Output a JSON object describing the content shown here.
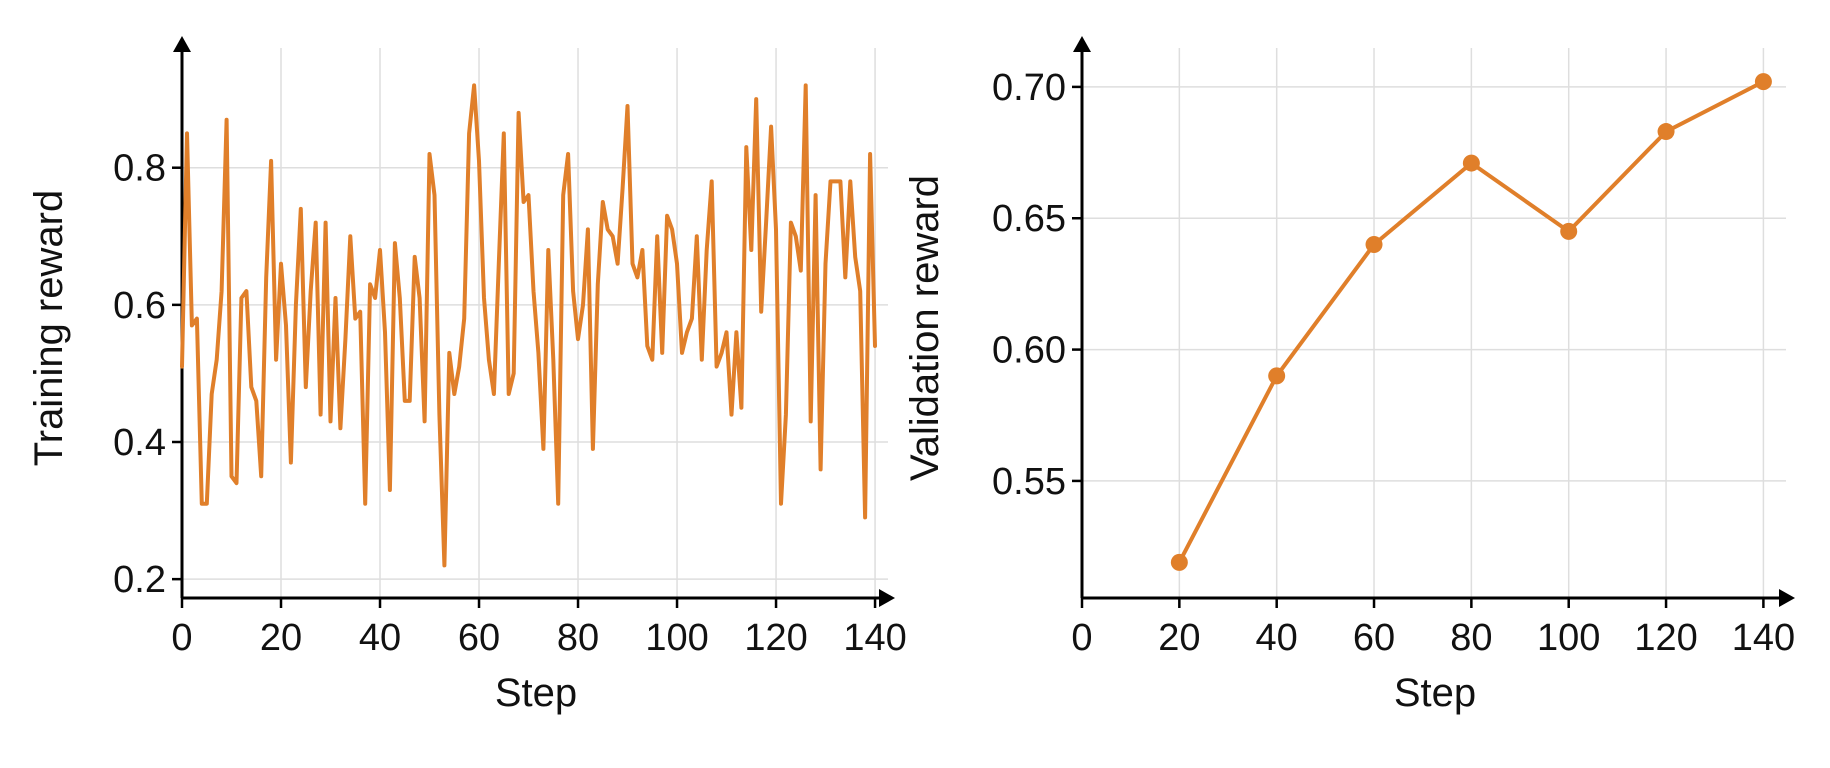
{
  "colors": {
    "series": "#E07F2A",
    "grid": "#DEDEDE",
    "axis": "#000000"
  },
  "chart_data": [
    {
      "type": "line",
      "xlabel": "Step",
      "ylabel": "Training reward",
      "xlim": [
        0,
        141
      ],
      "ylim": [
        0.19,
        0.96
      ],
      "xticks": [
        0,
        20,
        40,
        60,
        80,
        100,
        120,
        140
      ],
      "yticks": [
        0.2,
        0.4,
        0.6,
        0.8
      ],
      "ytick_labels": [
        "0.2",
        "0.4",
        "0.6",
        "0.8"
      ],
      "grid": true,
      "series": [
        {
          "x": [
            0,
            1,
            2,
            3,
            4,
            5,
            6,
            7,
            8,
            9,
            10,
            11,
            12,
            13,
            14,
            15,
            16,
            17,
            18,
            19,
            20,
            21,
            22,
            23,
            24,
            25,
            26,
            27,
            28,
            29,
            30,
            31,
            32,
            33,
            34,
            35,
            36,
            37,
            38,
            39,
            40,
            41,
            42,
            43,
            44,
            45,
            46,
            47,
            48,
            49,
            50,
            51,
            52,
            53,
            54,
            55,
            56,
            57,
            58,
            59,
            60,
            61,
            62,
            63,
            64,
            65,
            66,
            67,
            68,
            69,
            70,
            71,
            72,
            73,
            74,
            75,
            76,
            77,
            78,
            79,
            80,
            81,
            82,
            83,
            84,
            85,
            86,
            87,
            88,
            89,
            90,
            91,
            92,
            93,
            94,
            95,
            96,
            97,
            98,
            99,
            100,
            101,
            102,
            103,
            104,
            105,
            106,
            107,
            108,
            109,
            110,
            111,
            112,
            113,
            114,
            115,
            116,
            117,
            118,
            119,
            120,
            121,
            122,
            123,
            124,
            125,
            126,
            127,
            128,
            129,
            130,
            131,
            132,
            133,
            134,
            135,
            136,
            137,
            138,
            139,
            140
          ],
          "values": [
            0.51,
            0.85,
            0.57,
            0.58,
            0.31,
            0.31,
            0.47,
            0.52,
            0.62,
            0.87,
            0.35,
            0.34,
            0.61,
            0.62,
            0.48,
            0.46,
            0.35,
            0.64,
            0.81,
            0.52,
            0.66,
            0.57,
            0.37,
            0.6,
            0.74,
            0.48,
            0.62,
            0.72,
            0.44,
            0.72,
            0.43,
            0.61,
            0.42,
            0.55,
            0.7,
            0.58,
            0.59,
            0.31,
            0.63,
            0.61,
            0.68,
            0.56,
            0.33,
            0.69,
            0.61,
            0.46,
            0.46,
            0.67,
            0.61,
            0.43,
            0.82,
            0.76,
            0.44,
            0.22,
            0.53,
            0.47,
            0.51,
            0.58,
            0.85,
            0.92,
            0.81,
            0.61,
            0.52,
            0.47,
            0.66,
            0.85,
            0.47,
            0.5,
            0.88,
            0.75,
            0.76,
            0.62,
            0.53,
            0.39,
            0.68,
            0.52,
            0.31,
            0.76,
            0.82,
            0.62,
            0.55,
            0.6,
            0.71,
            0.39,
            0.63,
            0.75,
            0.71,
            0.7,
            0.66,
            0.77,
            0.89,
            0.66,
            0.64,
            0.68,
            0.54,
            0.52,
            0.7,
            0.53,
            0.73,
            0.71,
            0.66,
            0.53,
            0.56,
            0.58,
            0.7,
            0.52,
            0.68,
            0.78,
            0.51,
            0.53,
            0.56,
            0.44,
            0.56,
            0.45,
            0.83,
            0.68,
            0.9,
            0.59,
            0.72,
            0.86,
            0.71,
            0.31,
            0.44,
            0.72,
            0.7,
            0.65,
            0.92,
            0.43,
            0.76,
            0.36,
            0.66,
            0.78,
            0.78,
            0.78,
            0.64,
            0.78,
            0.67,
            0.62,
            0.29,
            0.82,
            0.54
          ]
        }
      ]
    },
    {
      "type": "line",
      "xlabel": "Step",
      "ylabel": "Validation reward",
      "xlim": [
        0,
        143
      ],
      "ylim": [
        0.51,
        0.711
      ],
      "xticks": [
        0,
        20,
        40,
        60,
        80,
        100,
        120,
        140
      ],
      "yticks": [
        0.55,
        0.6,
        0.65,
        0.7
      ],
      "ytick_labels": [
        "0.55",
        "0.60",
        "0.65",
        "0.70"
      ],
      "grid": true,
      "series": [
        {
          "x": [
            20,
            40,
            60,
            80,
            100,
            120,
            140
          ],
          "values": [
            0.519,
            0.59,
            0.64,
            0.671,
            0.645,
            0.683,
            0.702
          ],
          "markers": true
        }
      ]
    }
  ]
}
